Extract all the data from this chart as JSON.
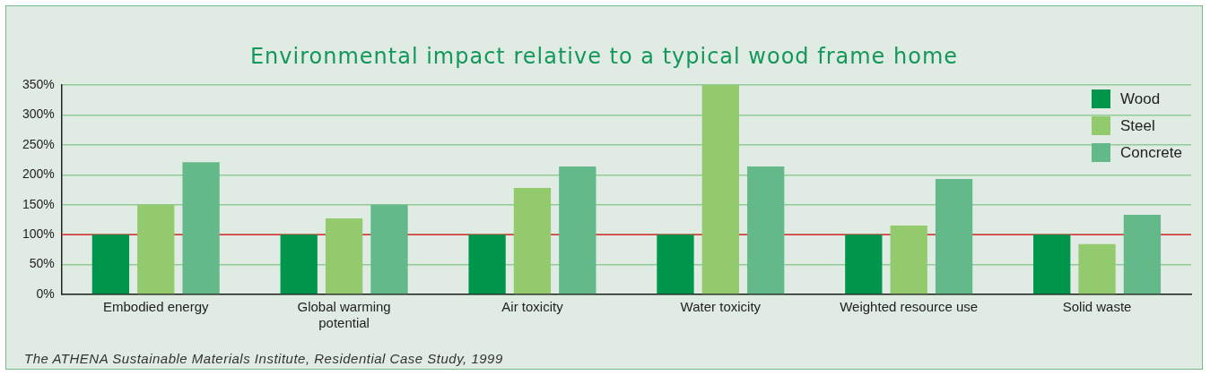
{
  "chart_data": {
    "type": "bar",
    "title": "Environmental impact relative to a typical wood frame home",
    "categories": [
      "Embodied energy",
      "Global warming potential",
      "Air toxicity",
      "Water toxicity",
      "Weighted resource use",
      "Solid waste"
    ],
    "series": [
      {
        "name": "Wood",
        "color": "#00964b",
        "values": [
          100,
          100,
          100,
          100,
          100,
          100
        ]
      },
      {
        "name": "Steel",
        "color": "#93ca6e",
        "values": [
          150,
          127,
          178,
          350,
          115,
          84
        ]
      },
      {
        "name": "Concrete",
        "color": "#63b98a",
        "values": [
          221,
          150,
          214,
          214,
          193,
          133
        ]
      }
    ],
    "ylim": [
      0,
      350
    ],
    "yticks": [
      {
        "value": 0,
        "label": "0%"
      },
      {
        "value": 50,
        "label": "50%"
      },
      {
        "value": 100,
        "label": "100%"
      },
      {
        "value": 150,
        "label": "150%"
      },
      {
        "value": 200,
        "label": "200%"
      },
      {
        "value": 250,
        "label": "250%"
      },
      {
        "value": 300,
        "label": "300%"
      },
      {
        "value": 350,
        "label": "350%"
      }
    ],
    "ref_lines": [
      {
        "axis": "y",
        "value": 100,
        "color": "#e8303a",
        "line_style": "solid"
      }
    ],
    "grid": "y",
    "legend": "top right",
    "annotations": [
      "The ATHENA Sustainable Materials Institute, Residential Case Study, 1999"
    ]
  }
}
